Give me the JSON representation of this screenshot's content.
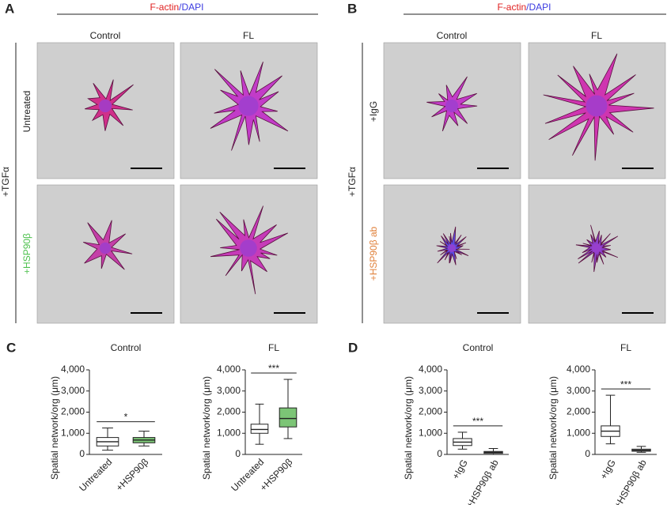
{
  "panels": [
    {
      "label": "A",
      "stain": [
        "F-actin",
        "/DAPI"
      ],
      "columns": [
        "Control",
        "FL"
      ],
      "treatment": "+TGFα",
      "rows": [
        "Untreated",
        "+HSP90β"
      ]
    },
    {
      "label": "B",
      "stain": [
        "F-actin",
        "/DAPI"
      ],
      "columns": [
        "Control",
        "FL"
      ],
      "treatment": "+TGFα",
      "rows": [
        "+IgG",
        "+HSP90β ab"
      ]
    }
  ],
  "chart_data": [
    {
      "type": "box",
      "panel_label": "C",
      "title": "Control",
      "y_label": "Spatial network/org (μm)",
      "categories": [
        "Untreated",
        "+HSP90β"
      ],
      "colors": [
        "#ffffff",
        "#7cc576"
      ],
      "boxes": [
        {
          "min": 200,
          "q1": 400,
          "median": 600,
          "q3": 800,
          "max": 1250
        },
        {
          "min": 400,
          "q1": 550,
          "median": 680,
          "q3": 800,
          "max": 1100
        }
      ],
      "annotation": "*",
      "ylim": [
        0,
        4000
      ],
      "yticks": [
        0,
        {
          "value": 1000,
          "label": "1,000"
        },
        {
          "value": 2000,
          "label": "2,000"
        },
        {
          "value": 3000,
          "label": "3,000"
        },
        {
          "value": 4000,
          "label": "4,000"
        }
      ]
    },
    {
      "type": "box",
      "title": "FL",
      "y_label": "Spatial network/org (μm)",
      "categories": [
        "Untreated",
        "+HSP90β"
      ],
      "colors": [
        "#ffffff",
        "#7cc576"
      ],
      "boxes": [
        {
          "min": 480,
          "q1": 1000,
          "median": 1180,
          "q3": 1430,
          "max": 2380
        },
        {
          "min": 750,
          "q1": 1300,
          "median": 1700,
          "q3": 2200,
          "max": 3550
        }
      ],
      "annotation": "***",
      "ylim": [
        0,
        4000
      ],
      "yticks": [
        0,
        {
          "value": 1000,
          "label": "1,000"
        },
        {
          "value": 2000,
          "label": "2,000"
        },
        {
          "value": 3000,
          "label": "3,000"
        },
        {
          "value": 4000,
          "label": "4,000"
        }
      ]
    },
    {
      "type": "box",
      "panel_label": "D",
      "title": "Control",
      "y_label": "Spatial network/org (μm)",
      "categories": [
        "+IgG",
        "+HSP90β ab"
      ],
      "colors": [
        "#ffffff",
        "#ffffff"
      ],
      "boxes": [
        {
          "min": 250,
          "q1": 420,
          "median": 580,
          "q3": 750,
          "max": 1050
        },
        {
          "min": 0,
          "q1": 50,
          "median": 100,
          "q3": 140,
          "max": 280
        }
      ],
      "annotation": "***",
      "ylim": [
        0,
        4000
      ],
      "yticks": [
        0,
        {
          "value": 1000,
          "label": "1,000"
        },
        {
          "value": 2000,
          "label": "2,000"
        },
        {
          "value": 3000,
          "label": "3,000"
        },
        {
          "value": 4000,
          "label": "4,000"
        }
      ]
    },
    {
      "type": "box",
      "title": "FL",
      "y_label": "Spatial network/org (μm)",
      "categories": [
        "+IgG",
        "+HSP90β ab"
      ],
      "colors": [
        "#ffffff",
        "#ffffff"
      ],
      "boxes": [
        {
          "min": 500,
          "q1": 850,
          "median": 1100,
          "q3": 1350,
          "max": 2800
        },
        {
          "min": 100,
          "q1": 150,
          "median": 200,
          "q3": 250,
          "max": 380
        }
      ],
      "annotation": "***",
      "ylim": [
        0,
        4000
      ],
      "yticks": [
        0,
        {
          "value": 1000,
          "label": "1,000"
        },
        {
          "value": 2000,
          "label": "2,000"
        },
        {
          "value": 3000,
          "label": "3,000"
        },
        {
          "value": 4000,
          "label": "4,000"
        }
      ]
    }
  ]
}
